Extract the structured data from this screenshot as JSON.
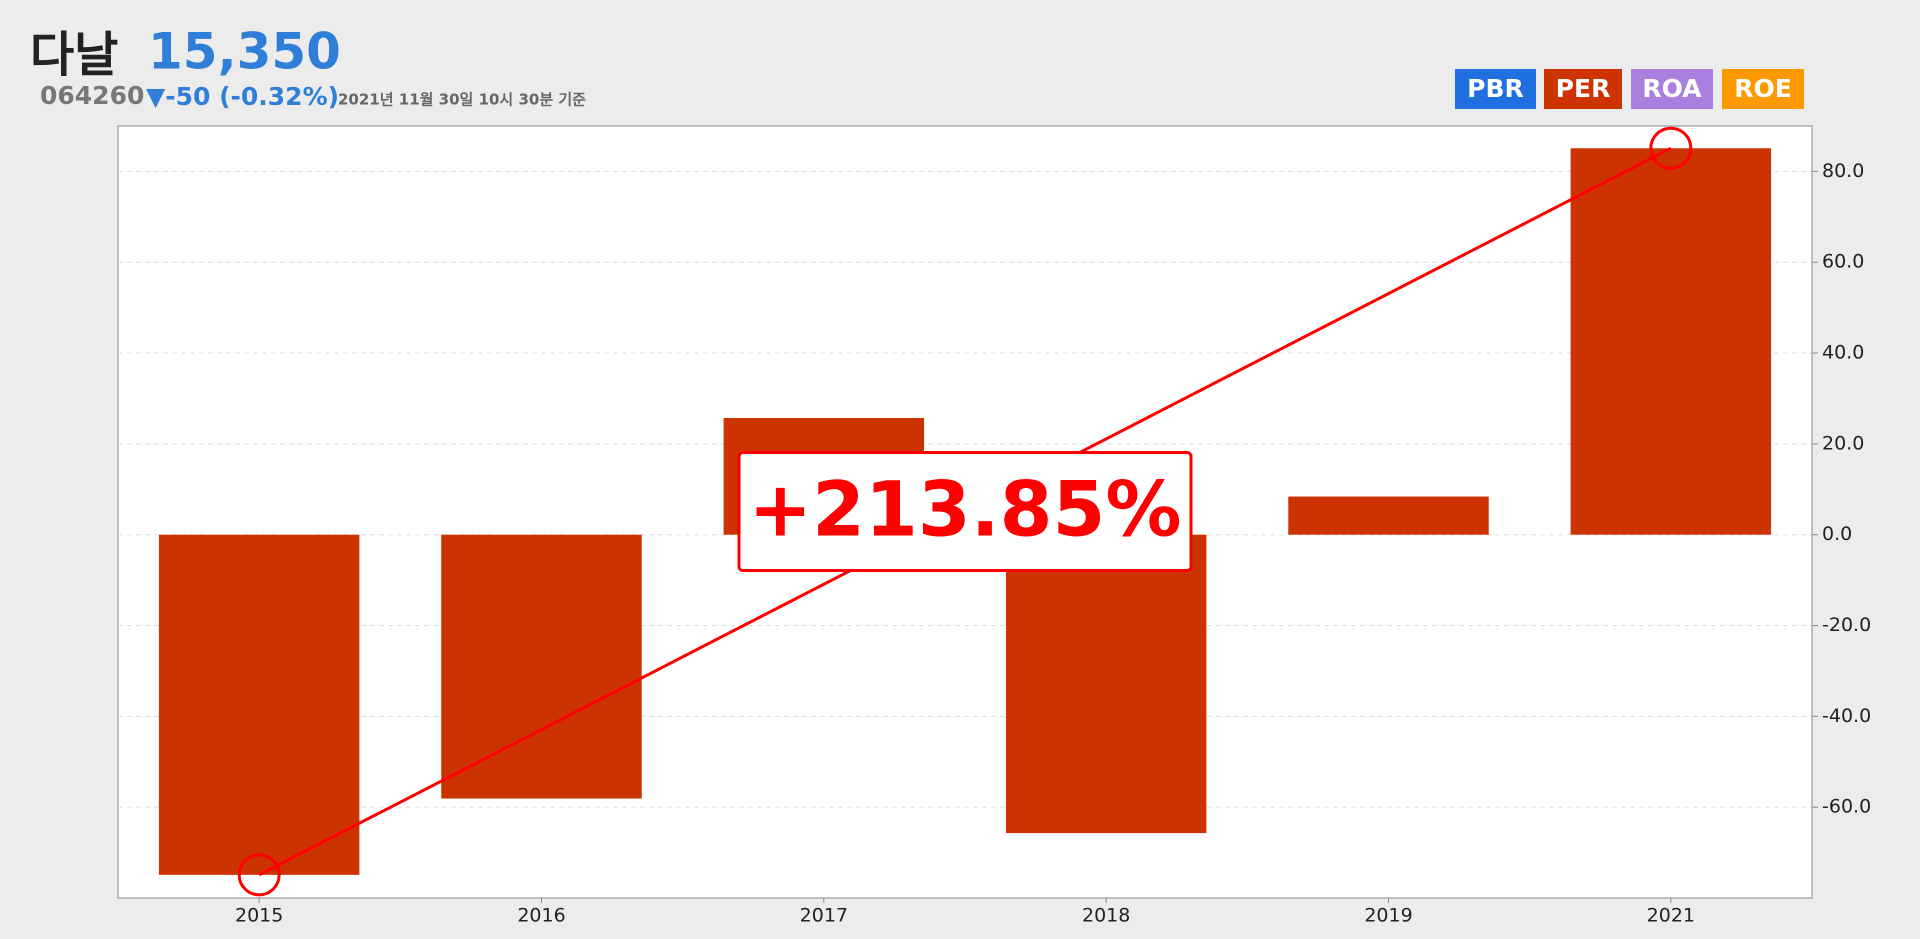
{
  "header": {
    "name": "다날",
    "price": "15,350",
    "code": "064260",
    "change": "▼-50 (-0.32%)",
    "timestamp": "2021년 11월 30일 10시 30분 기준",
    "buttons": [
      {
        "name": "PBR",
        "color": "#1f6fe0"
      },
      {
        "name": "PER",
        "color": "#cc3300"
      },
      {
        "name": "ROA",
        "color": "#a97fdf"
      },
      {
        "name": "ROE",
        "color": "#ff9900"
      }
    ]
  },
  "chart_data": {
    "type": "bar",
    "categories": [
      "2015",
      "2016",
      "2017",
      "2018",
      "2019",
      "2021"
    ],
    "values": [
      -74.9,
      -58.1,
      25.7,
      -65.7,
      8.4,
      85.1
    ],
    "color": "#cc3300",
    "ylim": [
      -80,
      90
    ],
    "yticks": [
      {
        "value": -60,
        "label": "-60.0"
      },
      {
        "value": -40,
        "label": "-40.0"
      },
      {
        "value": -20,
        "label": "-20.0"
      },
      {
        "value": 0,
        "label": "0.0"
      },
      {
        "value": 20,
        "label": "20.0"
      },
      {
        "value": 40,
        "label": "40.0"
      },
      {
        "value": 60,
        "label": "60.0"
      },
      {
        "value": 80,
        "label": "80.0"
      }
    ],
    "grid": true,
    "annotation": "+213.85%",
    "annotation_color": "#ff0000"
  }
}
